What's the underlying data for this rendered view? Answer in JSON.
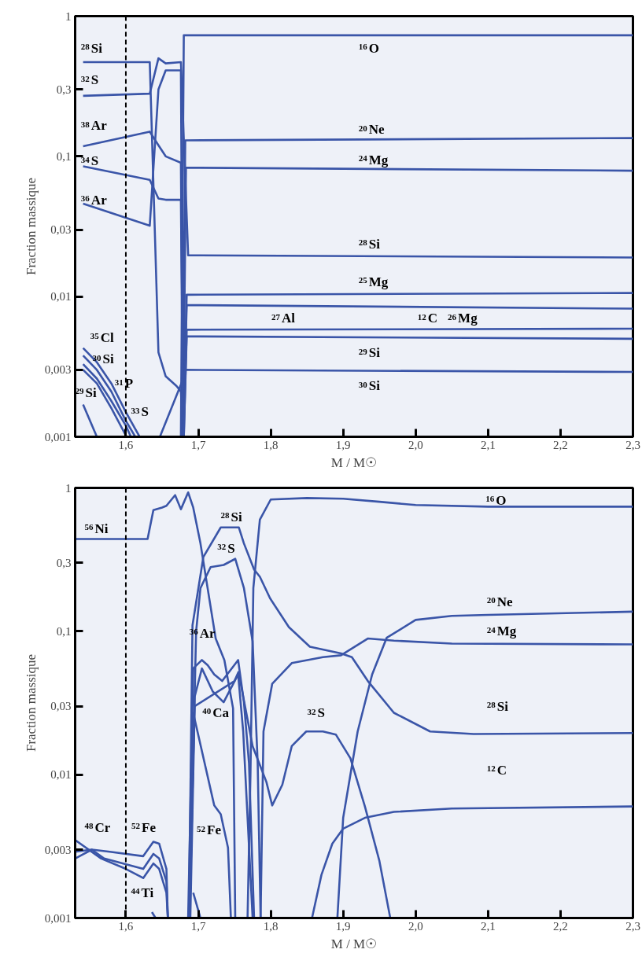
{
  "chart_data": [
    {
      "type": "line",
      "log": "y",
      "grid": false,
      "xlabel": "M / M☉",
      "ylabel": "Fraction massique",
      "xlim": [
        1.53,
        2.3
      ],
      "ylim": [
        0.001,
        1
      ],
      "xticks": [
        {
          "value": 1.6,
          "label": "1,6"
        },
        {
          "value": 1.7,
          "label": "1,7"
        },
        {
          "value": 1.8,
          "label": "1,8"
        },
        {
          "value": 1.9,
          "label": "1,9"
        },
        {
          "value": 2.0,
          "label": "2,0"
        },
        {
          "value": 2.1,
          "label": "2,1"
        },
        {
          "value": 2.2,
          "label": "2,2"
        },
        {
          "value": 2.3,
          "label": "2,3"
        }
      ],
      "yticks": [
        {
          "value": 0.001,
          "label": "0,001"
        },
        {
          "value": 0.003,
          "label": "0,003"
        },
        {
          "value": 0.01,
          "label": "0,01"
        },
        {
          "value": 0.03,
          "label": "0,03"
        },
        {
          "value": 0.1,
          "label": "0,1"
        },
        {
          "value": 0.3,
          "label": "0,3"
        },
        1
      ],
      "ref_lines": [
        {
          "axis": "x",
          "value": 1.6,
          "line_style": "dashed",
          "color": "#000000"
        }
      ],
      "series": [
        {
          "color": "#3a55a8",
          "x": [
            1.676,
            1.68,
            2.3
          ],
          "values": [
            0.001,
            0.73,
            0.73
          ]
        },
        {
          "color": "#3a55a8",
          "x": [
            1.678,
            1.682,
            2.3
          ],
          "values": [
            0.001,
            0.13,
            0.135
          ]
        },
        {
          "color": "#3a55a8",
          "x": [
            1.679,
            1.683,
            2.3
          ],
          "values": [
            0.001,
            0.083,
            0.079
          ]
        },
        {
          "color": "#3a55a8",
          "x": [
            1.541,
            1.633,
            1.645,
            1.655,
            1.676,
            1.686,
            2.3
          ],
          "values": [
            0.27,
            0.28,
            0.5,
            0.46,
            0.47,
            0.0197,
            0.019
          ]
        },
        {
          "color": "#3a55a8",
          "x": [
            1.541,
            1.633,
            1.645,
            1.655,
            1.67,
            1.676,
            1.679
          ],
          "values": [
            0.47,
            0.47,
            0.004,
            0.0027,
            0.0023,
            0.0021,
            0.001
          ]
        },
        {
          "color": "#3a55a8",
          "x": [
            1.541,
            1.633,
            1.645,
            1.655,
            1.676,
            1.679
          ],
          "values": [
            0.046,
            0.032,
            0.3,
            0.41,
            0.41,
            0.001
          ]
        },
        {
          "color": "#3a55a8",
          "x": [
            1.541,
            1.633,
            1.645,
            1.655,
            1.676,
            1.679
          ],
          "values": [
            0.118,
            0.15,
            0.12,
            0.1,
            0.09,
            0.001
          ]
        },
        {
          "color": "#3a55a8",
          "x": [
            1.541,
            1.633,
            1.645,
            1.655,
            1.676,
            1.679
          ],
          "values": [
            0.085,
            0.068,
            0.05,
            0.049,
            0.049,
            0.001
          ]
        },
        {
          "color": "#3a55a8",
          "x": [
            1.679,
            1.684,
            2.3
          ],
          "values": [
            0.001,
            0.0103,
            0.0106
          ]
        },
        {
          "color": "#3a55a8",
          "x": [
            1.679,
            1.684,
            2.3
          ],
          "values": [
            0.001,
            0.0087,
            0.0082
          ]
        },
        {
          "color": "#3a55a8",
          "x": [
            1.68,
            1.684,
            2.3
          ],
          "values": [
            0.001,
            0.0058,
            0.0059
          ]
        },
        {
          "color": "#3a55a8",
          "x": [
            1.68,
            1.684,
            2.3
          ],
          "values": [
            0.001,
            0.0052,
            0.005
          ]
        },
        {
          "color": "#3a55a8",
          "x": [
            1.647,
            1.678,
            1.682,
            2.3
          ],
          "values": [
            0.001,
            0.0025,
            0.003,
            0.0029
          ]
        },
        {
          "color": "#3a55a8",
          "x": [
            1.541,
            1.56,
            1.58,
            1.6,
            1.619
          ],
          "values": [
            0.0043,
            0.0034,
            0.0024,
            0.0015,
            0.001
          ]
        },
        {
          "color": "#3a55a8",
          "x": [
            1.541,
            1.56,
            1.58,
            1.6,
            1.613
          ],
          "values": [
            0.0038,
            0.003,
            0.0021,
            0.0013,
            0.001
          ]
        },
        {
          "color": "#3a55a8",
          "x": [
            1.541,
            1.56,
            1.58,
            1.6,
            1.607
          ],
          "values": [
            0.0033,
            0.0026,
            0.0018,
            0.0012,
            0.001
          ]
        },
        {
          "color": "#3a55a8",
          "x": [
            1.541,
            1.56,
            1.58,
            1.601
          ],
          "values": [
            0.003,
            0.0024,
            0.0016,
            0.001
          ]
        },
        {
          "color": "#3a55a8",
          "x": [
            1.541,
            1.56
          ],
          "values": [
            0.0017,
            0.001
          ]
        }
      ],
      "annotations": [
        "$^{28}$Si",
        "$^{32}$S",
        "$^{38}$Ar",
        "$^{34}$S",
        "$^{36}$Ar",
        "$^{35}$Cl",
        "$^{30}$Si",
        "$^{29}$Si",
        "$^{31}$P",
        "$^{33}$S",
        "$^{16}$O",
        "$^{20}$Ne",
        "$^{24}$Mg",
        "$^{28}$Si",
        "$^{25}$Mg",
        "$^{27}$Al",
        "$^{12}$C",
        "$^{26}$Mg",
        "$^{29}$Si",
        "$^{30}$Si"
      ]
    },
    {
      "type": "line",
      "log": "y",
      "grid": false,
      "xlabel": "M / M☉",
      "ylabel": "Fraction massique",
      "xlim": [
        1.53,
        2.3
      ],
      "ylim": [
        0.001,
        1
      ],
      "xticks": [
        {
          "value": 1.6,
          "label": "1,6"
        },
        {
          "value": 1.7,
          "label": "1,7"
        },
        {
          "value": 1.8,
          "label": "1,8"
        },
        {
          "value": 1.9,
          "label": "1,9"
        },
        {
          "value": 2.0,
          "label": "2,0"
        },
        {
          "value": 2.1,
          "label": "2,1"
        },
        {
          "value": 2.2,
          "label": "2,2"
        },
        {
          "value": 2.3,
          "label": "2,3"
        }
      ],
      "yticks": [
        {
          "value": 0.001,
          "label": "0,001"
        },
        {
          "value": 0.003,
          "label": "0,003"
        },
        {
          "value": 0.01,
          "label": "0,01"
        },
        {
          "value": 0.03,
          "label": "0,03"
        },
        {
          "value": 0.1,
          "label": "0,1"
        },
        {
          "value": 0.3,
          "label": "0,3"
        },
        1
      ],
      "ref_lines": [
        {
          "axis": "x",
          "value": 1.6,
          "line_style": "dashed",
          "color": "#000000"
        }
      ],
      "series": [
        {
          "color": "#3a55a8",
          "x": [
            1.53,
            1.63,
            1.638,
            1.65,
            1.656,
            1.668,
            1.676,
            1.686,
            1.693,
            1.703,
            1.724,
            1.736,
            1.748,
            1.751
          ],
          "values": [
            0.44,
            0.44,
            0.7,
            0.73,
            0.75,
            0.89,
            0.71,
            0.93,
            0.73,
            0.41,
            0.089,
            0.063,
            0.029,
            0.001
          ]
        },
        {
          "color": "#3a55a8",
          "x": [
            1.768,
            1.772,
            1.776,
            1.785,
            1.8,
            1.85,
            1.9,
            1.95,
            2.0,
            2.1,
            2.3
          ],
          "values": [
            0.001,
            0.01,
            0.2,
            0.6,
            0.83,
            0.85,
            0.84,
            0.8,
            0.76,
            0.74,
            0.74
          ]
        },
        {
          "color": "#3a55a8",
          "x": [
            1.687,
            1.692,
            1.707,
            1.731,
            1.756,
            1.763,
            1.777,
            1.785,
            1.799,
            1.825,
            1.854,
            1.897,
            1.912,
            1.934,
            1.97,
            2.02,
            2.08,
            2.3
          ],
          "values": [
            0.001,
            0.11,
            0.33,
            0.53,
            0.53,
            0.41,
            0.27,
            0.24,
            0.17,
            0.107,
            0.078,
            0.07,
            0.066,
            0.045,
            0.027,
            0.02,
            0.0192,
            0.0195
          ]
        },
        {
          "color": "#3a55a8",
          "x": [
            1.786,
            1.79,
            1.802,
            1.829,
            1.872,
            1.897,
            1.934,
            1.97,
            2.05,
            2.3
          ],
          "values": [
            0.001,
            0.02,
            0.043,
            0.06,
            0.066,
            0.068,
            0.089,
            0.086,
            0.082,
            0.081
          ]
        },
        {
          "color": "#3a55a8",
          "x": [
            1.688,
            1.697,
            1.703,
            1.717,
            1.735,
            1.751,
            1.763,
            1.775,
            1.782,
            1.786
          ],
          "values": [
            0.001,
            0.1,
            0.2,
            0.28,
            0.29,
            0.32,
            0.2,
            0.085,
            0.012,
            0.001
          ]
        },
        {
          "color": "#3a55a8",
          "x": [
            1.689,
            1.695,
            1.75,
            1.7555,
            1.775,
            1.794,
            1.802,
            1.816,
            1.829,
            1.849,
            1.872,
            1.89,
            1.91,
            1.93,
            1.95,
            1.965
          ],
          "values": [
            0.001,
            0.03,
            0.045,
            0.052,
            0.0158,
            0.0089,
            0.0061,
            0.0085,
            0.0158,
            0.02,
            0.02,
            0.019,
            0.013,
            0.006,
            0.0025,
            0.001
          ]
        },
        {
          "color": "#3a55a8",
          "x": [
            1.892,
            1.9,
            1.92,
            1.94,
            1.96,
            2.0,
            2.05,
            2.1,
            2.3
          ],
          "values": [
            0.001,
            0.005,
            0.02,
            0.05,
            0.09,
            0.12,
            0.128,
            0.13,
            0.137
          ]
        },
        {
          "color": "#3a55a8",
          "x": [
            1.857,
            1.87,
            1.885,
            1.9,
            1.93,
            1.97,
            2.05,
            2.3
          ],
          "values": [
            0.001,
            0.002,
            0.0033,
            0.0042,
            0.005,
            0.0055,
            0.0058,
            0.006
          ]
        },
        {
          "color": "#3a55a8",
          "x": [
            1.686,
            1.693,
            1.705,
            1.713,
            1.722,
            1.733,
            1.755,
            1.763,
            1.77,
            1.777
          ],
          "values": [
            0.001,
            0.055,
            0.063,
            0.058,
            0.05,
            0.045,
            0.063,
            0.032,
            0.012,
            0.001
          ]
        },
        {
          "color": "#3a55a8",
          "x": [
            1.688,
            1.695,
            1.705,
            1.72,
            1.735,
            1.755,
            1.762,
            1.775
          ],
          "values": [
            0.001,
            0.035,
            0.055,
            0.038,
            0.032,
            0.05,
            0.02,
            0.001
          ]
        },
        {
          "color": "#3a55a8",
          "x": [
            1.687,
            1.693,
            1.722,
            1.731,
            1.741,
            1.745
          ],
          "values": [
            0.001,
            0.027,
            0.0061,
            0.0053,
            0.0031,
            0.001
          ]
        },
        {
          "color": "#3a55a8",
          "x": [
            1.53,
            1.566,
            1.6,
            1.624,
            1.638,
            1.646,
            1.656,
            1.658
          ],
          "values": [
            0.0035,
            0.0026,
            0.0022,
            0.0019,
            0.0024,
            0.0022,
            0.0015,
            0.001
          ]
        },
        {
          "color": "#3a55a8",
          "x": [
            1.53,
            1.553,
            1.578,
            1.624,
            1.638,
            1.646,
            1.656,
            1.658
          ],
          "values": [
            0.0029,
            0.003,
            0.0029,
            0.0027,
            0.0034,
            0.0033,
            0.0022,
            0.001
          ]
        },
        {
          "color": "#3a55a8",
          "x": [
            1.53,
            1.553,
            1.57,
            1.624,
            1.638,
            1.646,
            1.656,
            1.658
          ],
          "values": [
            0.0026,
            0.003,
            0.0026,
            0.0022,
            0.0028,
            0.0026,
            0.0018,
            0.001
          ]
        },
        {
          "color": "#3a55a8",
          "x": [
            1.636,
            1.641
          ],
          "values": [
            0.0011,
            0.001
          ]
        },
        {
          "color": "#3a55a8",
          "x": [
            1.693,
            1.703
          ],
          "values": [
            0.0015,
            0.001
          ]
        }
      ],
      "annotations": [
        "$^{56}$Ni",
        "$^{28}$Si",
        "$^{32}$S",
        "$^{16}$O",
        "$^{20}$Ne",
        "$^{24}$Mg",
        "$^{36}$Ar",
        "$^{40}$Ca",
        "$^{32}$S",
        "$^{28}$Si",
        "$^{12}$C",
        "$^{48}$Cr",
        "$^{52}$Fe",
        "$^{52}$Fe",
        "$^{44}$Ti"
      ]
    }
  ]
}
